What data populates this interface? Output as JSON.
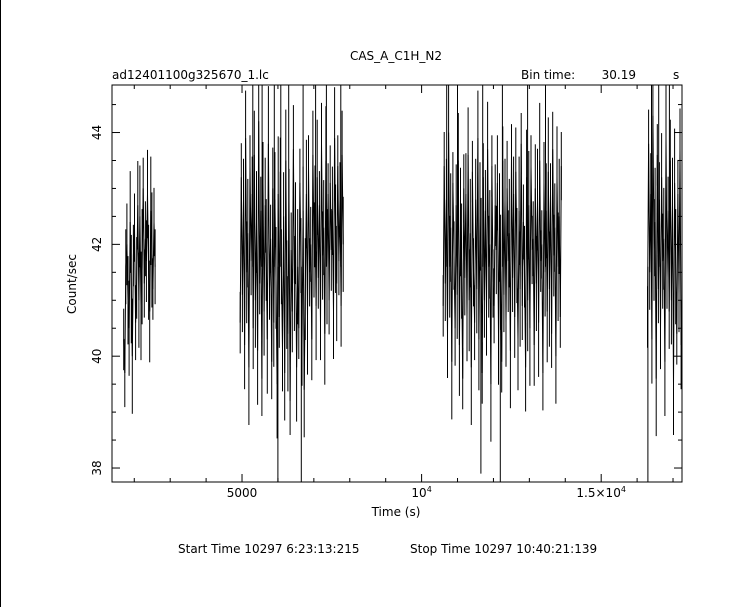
{
  "chart_data": {
    "type": "line",
    "title": "CAS_A_C1H_N2",
    "file_label": "ad12401100g325670_1.lc",
    "bin_time_label": "Bin time:",
    "bin_time_value": "30.19",
    "bin_time_unit": "s",
    "xlabel": "Time (s)",
    "ylabel": "Count/sec",
    "xlim": [
      1380,
      17250
    ],
    "ylim": [
      37.75,
      44.85
    ],
    "x_ticks": [
      {
        "value": 5000,
        "label": "5000",
        "sup": ""
      },
      {
        "value": 10000,
        "label": "10",
        "sup": "4"
      },
      {
        "value": 15000,
        "label": "1.5×10",
        "sup": "4"
      }
    ],
    "y_ticks": [
      {
        "value": 38,
        "label": "38"
      },
      {
        "value": 40,
        "label": "40"
      },
      {
        "value": 42,
        "label": "42"
      },
      {
        "value": 44,
        "label": "44"
      }
    ],
    "series": [
      {
        "segments": [
          {
            "x_start": 1705,
            "bin": 30.19,
            "y": [
              40.3,
              39.7,
              41.6,
              42.0,
              41.0,
              40.5,
              42.4,
              41.2,
              40.0,
              41.8,
              42.3,
              40.6,
              41.4,
              42.7,
              41.0,
              42.5,
              40.9,
              41.6,
              43.0,
              41.3,
              42.1,
              41.7,
              42.9,
              41.5,
              40.8,
              42.6,
              41.9,
              41.2,
              42.4,
              41.6
            ]
          },
          {
            "x_start": 4950,
            "bin": 30.19,
            "y": [
              40.6,
              43.2,
              41.1,
              42.8,
              40.2,
              43.9,
              41.5,
              42.2,
              39.8,
              43.4,
              41.7,
              42.9,
              40.5,
              43.6,
              41.0,
              42.4,
              40.1,
              44.2,
              41.3,
              42.6,
              39.6,
              43.1,
              40.8,
              42.7,
              41.9,
              40.3,
              43.8,
              41.2,
              42.1,
              39.9,
              43.0,
              40.6,
              42.8,
              41.4,
              39.5,
              42.9,
              40.7,
              43.3,
              41.6,
              40.1,
              42.5,
              39.7,
              43.5,
              41.1,
              40.4,
              42.8,
              39.2,
              41.9,
              40.8,
              43.7,
              41.3,
              42.2,
              39.8,
              41.6,
              40.5,
              43.1,
              41.8,
              40.2,
              42.6,
              39.4,
              41.2,
              42.9,
              40.7,
              43.4,
              41.5,
              42.0,
              40.3,
              43.6,
              41.9,
              42.5,
              40.9,
              43.2,
              41.4,
              42.7,
              40.6,
              43.8,
              41.8,
              42.3,
              40.4,
              43.5,
              41.6,
              42.9,
              41.0,
              43.1,
              41.9,
              42.6,
              40.8,
              43.9,
              42.1,
              41.3,
              43.4,
              41.7,
              42.8,
              40.9,
              43.6,
              42.0
            ]
          },
          {
            "x_start": 10600,
            "bin": 30.19,
            "y": [
              40.9,
              43.4,
              41.3,
              42.8,
              40.4,
              44.0,
              41.6,
              42.3,
              39.9,
              43.1,
              41.8,
              40.5,
              42.7,
              41.1,
              43.5,
              40.2,
              42.4,
              41.7,
              39.6,
              43.0,
              41.4,
              42.9,
              40.7,
              43.6,
              41.0,
              42.2,
              39.8,
              43.3,
              41.5,
              40.6,
              42.8,
              41.2,
              43.9,
              40.3,
              42.5,
              41.8,
              39.7,
              43.2,
              41.0,
              42.6,
              40.8,
              43.7,
              41.6,
              42.0,
              39.5,
              43.4,
              41.3,
              40.9,
              42.7,
              41.9,
              43.1,
              40.4,
              42.3,
              41.5,
              39.9,
              43.5,
              41.1,
              42.8,
              40.6,
              43.0,
              41.7,
              42.2,
              40.1,
              43.6,
              41.4,
              42.9,
              40.7,
              43.3,
              41.8,
              40.3,
              42.6,
              41.2,
              43.8,
              40.9,
              42.4,
              41.6,
              39.8,
              43.2,
              41.0,
              42.7,
              40.5,
              43.4,
              41.9,
              42.1,
              40.2,
              43.0,
              41.3,
              42.8,
              40.6,
              43.5,
              41.7,
              42.0,
              39.7,
              43.1,
              41.5,
              42.6,
              40.8,
              43.3,
              41.2,
              42.9,
              40.4,
              43.7,
              41.8,
              42.3,
              40.0,
              43.2,
              41.6,
              42.5,
              40.7,
              43.4
            ]
          },
          {
            "x_start": 16290,
            "bin": 30.19,
            "y": [
              40.7,
              43.8,
              41.5,
              42.9,
              40.3,
              44.3,
              41.9,
              42.4,
              39.6,
              43.6,
              41.2,
              42.8,
              40.5,
              43.2,
              41.7,
              42.1,
              39.9,
              43.9,
              41.4,
              42.6,
              40.8,
              43.5,
              41.0,
              42.7,
              39.5,
              43.1,
              41.6,
              40.4,
              42.9,
              41.1,
              43.7,
              40.2
            ]
          }
        ],
        "spikes": [
          {
            "x": 5300,
            "y": 44.85
          },
          {
            "x": 5560,
            "y": 44.85
          },
          {
            "x": 5900,
            "y": 44.85
          },
          {
            "x": 6000,
            "y": 37.75
          },
          {
            "x": 6080,
            "y": 44.85
          },
          {
            "x": 6300,
            "y": 44.85
          },
          {
            "x": 6650,
            "y": 37.75
          },
          {
            "x": 6700,
            "y": 44.85
          },
          {
            "x": 7050,
            "y": 44.85
          },
          {
            "x": 7350,
            "y": 44.85
          },
          {
            "x": 7750,
            "y": 44.85
          },
          {
            "x": 10700,
            "y": 44.85
          },
          {
            "x": 11000,
            "y": 44.85
          },
          {
            "x": 11650,
            "y": 37.9
          },
          {
            "x": 11700,
            "y": 44.85
          },
          {
            "x": 12190,
            "y": 37.75
          },
          {
            "x": 12250,
            "y": 44.85
          },
          {
            "x": 12950,
            "y": 44.85
          },
          {
            "x": 13450,
            "y": 44.85
          },
          {
            "x": 16300,
            "y": 37.75
          },
          {
            "x": 16400,
            "y": 44.85
          },
          {
            "x": 16600,
            "y": 44.85
          },
          {
            "x": 16900,
            "y": 44.85
          }
        ]
      }
    ],
    "grid": false,
    "legend": "none"
  },
  "footer": {
    "start_time": "Start Time 10297  6:23:13:215",
    "stop_time": "Stop Time 10297 10:40:21:139"
  }
}
